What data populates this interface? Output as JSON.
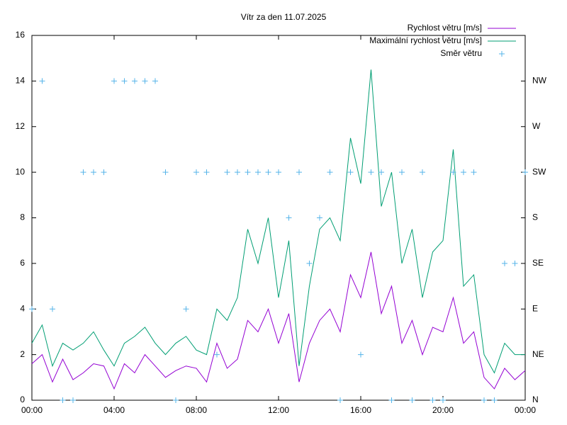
{
  "chart_data": {
    "type": "line",
    "title": "Vítr za den 11.07.2025",
    "x": [
      0,
      0.5,
      1,
      1.5,
      2,
      2.5,
      3,
      3.5,
      4,
      4.5,
      5,
      5.5,
      6,
      6.5,
      7,
      7.5,
      8,
      8.5,
      9,
      9.5,
      10,
      10.5,
      11,
      11.5,
      12,
      12.5,
      13,
      13.5,
      14,
      14.5,
      15,
      15.5,
      16,
      16.5,
      17,
      17.5,
      18,
      18.5,
      19,
      19.5,
      20,
      20.5,
      21,
      21.5,
      22,
      22.5,
      23,
      23.5,
      24
    ],
    "xlim": [
      0,
      24
    ],
    "xticks": [
      {
        "value": 0,
        "label": "00:00"
      },
      {
        "value": 4,
        "label": "04:00"
      },
      {
        "value": 8,
        "label": "08:00"
      },
      {
        "value": 12,
        "label": "12:00"
      },
      {
        "value": 16,
        "label": "16:00"
      },
      {
        "value": 20,
        "label": "20:00"
      },
      {
        "value": 24,
        "label": "00:00"
      }
    ],
    "ylim": [
      0,
      16
    ],
    "yticks": [
      0,
      2,
      4,
      6,
      8,
      10,
      12,
      14,
      16
    ],
    "y2lim": [
      0,
      16
    ],
    "y2ticks": [
      {
        "value": 0,
        "label": "N"
      },
      {
        "value": 2,
        "label": "NE"
      },
      {
        "value": 4,
        "label": "E"
      },
      {
        "value": 6,
        "label": "SE"
      },
      {
        "value": 8,
        "label": "S"
      },
      {
        "value": 10,
        "label": "SW"
      },
      {
        "value": 12,
        "label": "W"
      },
      {
        "value": 14,
        "label": "NW"
      }
    ],
    "legend": "top-right",
    "series": [
      {
        "name": "Rychlost větru [m/s]",
        "color": "#9400d3",
        "values": [
          1.6,
          2.0,
          0.8,
          1.8,
          0.9,
          1.2,
          1.6,
          1.5,
          0.5,
          1.6,
          1.2,
          2.0,
          1.5,
          1.0,
          1.3,
          1.5,
          1.4,
          0.8,
          2.5,
          1.4,
          1.8,
          3.5,
          3.0,
          4.0,
          2.5,
          3.8,
          0.8,
          2.5,
          3.5,
          4.0,
          3.0,
          5.5,
          4.5,
          6.5,
          3.8,
          5.0,
          2.5,
          3.5,
          2.0,
          3.2,
          3.0,
          4.5,
          2.5,
          3.0,
          1.0,
          0.5,
          1.4,
          0.9,
          1.3
        ]
      },
      {
        "name": "Maximální rychlost větru [m/s]",
        "color": "#009e73",
        "values": [
          2.5,
          3.3,
          1.5,
          2.5,
          2.2,
          2.5,
          3.0,
          2.2,
          1.5,
          2.5,
          2.8,
          3.2,
          2.5,
          2.0,
          2.5,
          2.8,
          2.2,
          2.0,
          4.0,
          3.5,
          4.5,
          7.5,
          6.0,
          8.0,
          4.5,
          7.0,
          1.5,
          5.0,
          7.5,
          8.0,
          7.0,
          11.5,
          9.5,
          14.5,
          8.5,
          10.0,
          6.0,
          7.5,
          4.5,
          6.5,
          7.0,
          11.0,
          5.0,
          5.5,
          2.0,
          1.2,
          2.5,
          2.0,
          2.0
        ]
      },
      {
        "name": "Směr větru",
        "color": "#56b4e9",
        "axis": "y2",
        "marker": "+",
        "values": [
          4,
          14,
          4,
          0,
          0,
          10,
          10,
          10,
          14,
          14,
          14,
          14,
          14,
          10,
          0,
          4,
          10,
          10,
          2,
          10,
          10,
          10,
          10,
          10,
          10,
          8,
          10,
          6,
          8,
          10,
          0,
          10,
          2,
          10,
          10,
          0,
          10,
          0,
          10,
          0,
          0,
          10,
          10,
          10,
          0,
          0,
          6,
          6,
          10
        ]
      }
    ]
  }
}
